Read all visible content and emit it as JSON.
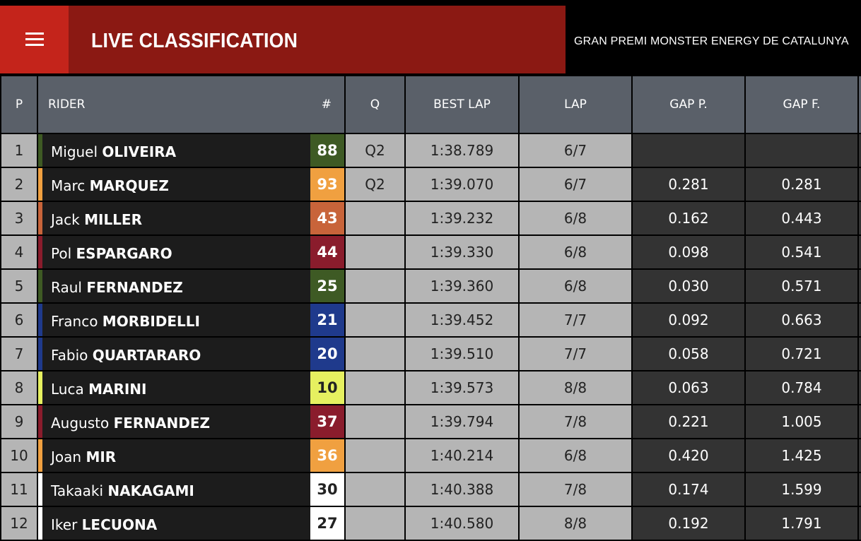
{
  "header": {
    "title": "LIVE CLASSIFICATION",
    "event": "GRAN PREMI MONSTER ENERGY DE CATALUNYA"
  },
  "columns": {
    "p": "P",
    "rider": "RIDER",
    "number": "#",
    "q": "Q",
    "best_lap": "BEST LAP",
    "lap": "LAP",
    "gap_p": "GAP P.",
    "gap_f": "GAP F."
  },
  "colors": {
    "menu_red": "#c4241b",
    "title_red": "#8b1913",
    "header_gray": "#5a6069"
  },
  "rows": [
    {
      "pos": "1",
      "first": "Miguel",
      "last": "OLIVEIRA",
      "num": "88",
      "team_color": "#3e5a24",
      "num_text": "#ffffff",
      "q": "Q2",
      "best": "1:38.789",
      "lap": "6/7",
      "gap_p": "",
      "gap_f": ""
    },
    {
      "pos": "2",
      "first": "Marc",
      "last": "MARQUEZ",
      "num": "93",
      "team_color": "#f0a040",
      "num_text": "#ffffff",
      "q": "Q2",
      "best": "1:39.070",
      "lap": "6/7",
      "gap_p": "0.281",
      "gap_f": "0.281"
    },
    {
      "pos": "3",
      "first": "Jack",
      "last": "MILLER",
      "num": "43",
      "team_color": "#c8643a",
      "num_text": "#ffffff",
      "q": "",
      "best": "1:39.232",
      "lap": "6/8",
      "gap_p": "0.162",
      "gap_f": "0.443"
    },
    {
      "pos": "4",
      "first": "Pol",
      "last": "ESPARGARO",
      "num": "44",
      "team_color": "#8a1c2c",
      "num_text": "#ffffff",
      "q": "",
      "best": "1:39.330",
      "lap": "6/8",
      "gap_p": "0.098",
      "gap_f": "0.541"
    },
    {
      "pos": "5",
      "first": "Raul",
      "last": "FERNANDEZ",
      "num": "25",
      "team_color": "#3e5a24",
      "num_text": "#ffffff",
      "q": "",
      "best": "1:39.360",
      "lap": "6/8",
      "gap_p": "0.030",
      "gap_f": "0.571"
    },
    {
      "pos": "6",
      "first": "Franco",
      "last": "MORBIDELLI",
      "num": "21",
      "team_color": "#1f3a8c",
      "num_text": "#ffffff",
      "q": "",
      "best": "1:39.452",
      "lap": "7/7",
      "gap_p": "0.092",
      "gap_f": "0.663"
    },
    {
      "pos": "7",
      "first": "Fabio",
      "last": "QUARTARARO",
      "num": "20",
      "team_color": "#1f3a8c",
      "num_text": "#ffffff",
      "q": "",
      "best": "1:39.510",
      "lap": "7/7",
      "gap_p": "0.058",
      "gap_f": "0.721"
    },
    {
      "pos": "8",
      "first": "Luca",
      "last": "MARINI",
      "num": "10",
      "team_color": "#e6f060",
      "num_text": "#222222",
      "q": "",
      "best": "1:39.573",
      "lap": "8/8",
      "gap_p": "0.063",
      "gap_f": "0.784"
    },
    {
      "pos": "9",
      "first": "Augusto",
      "last": "FERNANDEZ",
      "num": "37",
      "team_color": "#8a1c2c",
      "num_text": "#ffffff",
      "q": "",
      "best": "1:39.794",
      "lap": "7/8",
      "gap_p": "0.221",
      "gap_f": "1.005"
    },
    {
      "pos": "10",
      "first": "Joan",
      "last": "MIR",
      "num": "36",
      "team_color": "#f0a040",
      "num_text": "#ffffff",
      "q": "",
      "best": "1:40.214",
      "lap": "6/8",
      "gap_p": "0.420",
      "gap_f": "1.425"
    },
    {
      "pos": "11",
      "first": "Takaaki",
      "last": "NAKAGAMI",
      "num": "30",
      "team_color": "#ffffff",
      "num_text": "#222222",
      "q": "",
      "best": "1:40.388",
      "lap": "7/8",
      "gap_p": "0.174",
      "gap_f": "1.599"
    },
    {
      "pos": "12",
      "first": "Iker",
      "last": "LECUONA",
      "num": "27",
      "team_color": "#ffffff",
      "num_text": "#222222",
      "q": "",
      "best": "1:40.580",
      "lap": "8/8",
      "gap_p": "0.192",
      "gap_f": "1.791"
    }
  ]
}
